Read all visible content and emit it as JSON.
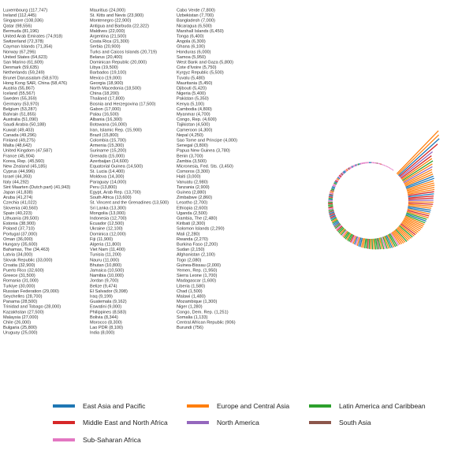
{
  "chart_data": {
    "type": "bar",
    "layout": "circular",
    "title": "",
    "sorted": "descending clockwise",
    "regions": {
      "E": {
        "name": "East Asia and Pacific",
        "color": "#1f77b4"
      },
      "U": {
        "name": "Europe and Central Asia",
        "color": "#ff7f0e"
      },
      "L": {
        "name": "Latin America and Caribbean",
        "color": "#2ca02c"
      },
      "M": {
        "name": "Middle East and North Africa",
        "color": "#d62728"
      },
      "N": {
        "name": "North America",
        "color": "#9467bd"
      },
      "S": {
        "name": "South Asia",
        "color": "#8c564b"
      },
      "A": {
        "name": "Sub-Saharan Africa",
        "color": "#e377c2"
      }
    },
    "legend_order": [
      "E",
      "U",
      "L",
      "M",
      "N",
      "S",
      "A"
    ],
    "countries": [
      [
        "Luxembourg",
        117747,
        "U"
      ],
      [
        "Ireland",
        112445,
        "U"
      ],
      [
        "Singapore",
        108036,
        "E"
      ],
      [
        "Qatar",
        98556,
        "M"
      ],
      [
        "Bermuda",
        81196,
        "N"
      ],
      [
        "United Arab Emirates",
        74918,
        "M"
      ],
      [
        "Switzerland",
        72378,
        "U"
      ],
      [
        "Cayman Islands",
        71354,
        "L"
      ],
      [
        "Norway",
        67296,
        "U"
      ],
      [
        "United States",
        64623,
        "N"
      ],
      [
        "San Marino",
        61609,
        "U"
      ],
      [
        "Denmark",
        59635,
        "U"
      ],
      [
        "Netherlands",
        59249,
        "U"
      ],
      [
        "Brunei Darussalam",
        58670,
        "E"
      ],
      [
        "Hong Kong SAR, China",
        58476,
        "E"
      ],
      [
        "Austria",
        55867,
        "U"
      ],
      [
        "Iceland",
        55567,
        "U"
      ],
      [
        "Sweden",
        55359,
        "U"
      ],
      [
        "Germany",
        53970,
        "U"
      ],
      [
        "Belgium",
        53287,
        "U"
      ],
      [
        "Bahrain",
        51855,
        "M"
      ],
      [
        "Australia",
        51090,
        "E"
      ],
      [
        "Saudi Arabia",
        50188,
        "M"
      ],
      [
        "Kuwait",
        49403,
        "M"
      ],
      [
        "Canada",
        49296,
        "N"
      ],
      [
        "Finland",
        49275,
        "U"
      ],
      [
        "Malta",
        48642,
        "M"
      ],
      [
        "United Kingdom",
        47587,
        "U"
      ],
      [
        "France",
        45904,
        "U"
      ],
      [
        "Korea, Rep.",
        45560,
        "E"
      ],
      [
        "New Zealand",
        45185,
        "E"
      ],
      [
        "Cyprus",
        44996,
        "U"
      ],
      [
        "Israel",
        44393,
        "M"
      ],
      [
        "Italy",
        44292,
        "U"
      ],
      [
        "Sint Maarten (Dutch part)",
        41943,
        "L"
      ],
      [
        "Japan",
        41838,
        "E"
      ],
      [
        "Aruba",
        41274,
        "L"
      ],
      [
        "Czechia",
        41022,
        "U"
      ],
      [
        "Slovenia",
        40560,
        "U"
      ],
      [
        "Spain",
        40223,
        "U"
      ],
      [
        "Lithuania",
        39500,
        "U"
      ],
      [
        "Estonia",
        38900,
        "U"
      ],
      [
        "Poland",
        37710,
        "U"
      ],
      [
        "Portugal",
        37000,
        "U"
      ],
      [
        "Oman",
        36000,
        "M"
      ],
      [
        "Hungary",
        35600,
        "U"
      ],
      [
        "Bahamas, The",
        34463,
        "L"
      ],
      [
        "Latvia",
        34000,
        "U"
      ],
      [
        "Slovak Republic",
        33000,
        "U"
      ],
      [
        "Croatia",
        32900,
        "U"
      ],
      [
        "Puerto Rico",
        32600,
        "L"
      ],
      [
        "Greece",
        31500,
        "U"
      ],
      [
        "Romania",
        31000,
        "U"
      ],
      [
        "Turkiye",
        30000,
        "U"
      ],
      [
        "Russian Federation",
        29000,
        "U"
      ],
      [
        "Seychelles",
        28700,
        "A"
      ],
      [
        "Panama",
        28500,
        "L"
      ],
      [
        "Trinidad and Tobago",
        28000,
        "L"
      ],
      [
        "Kazakhstan",
        27500,
        "U"
      ],
      [
        "Malaysia",
        27000,
        "E"
      ],
      [
        "Chile",
        26000,
        "L"
      ],
      [
        "Bulgaria",
        25800,
        "U"
      ],
      [
        "Uruguay",
        25000,
        "L"
      ],
      [
        "Mauritius",
        24000,
        "A"
      ],
      [
        "St. Kitts and Nevis",
        23900,
        "L"
      ],
      [
        "Montenegro",
        22900,
        "U"
      ],
      [
        "Antigua and Barbuda",
        22322,
        "L"
      ],
      [
        "Maldives",
        22000,
        "S"
      ],
      [
        "Argentina",
        21500,
        "L"
      ],
      [
        "Costa Rica",
        21300,
        "L"
      ],
      [
        "Serbia",
        20900,
        "U"
      ],
      [
        "Turks and Caicos Islands",
        20719,
        "L"
      ],
      [
        "Belarus",
        20400,
        "U"
      ],
      [
        "Dominican Republic",
        20000,
        "L"
      ],
      [
        "Libya",
        19500,
        "M"
      ],
      [
        "Barbados",
        19100,
        "L"
      ],
      [
        "Mexico",
        19000,
        "L"
      ],
      [
        "Georgia",
        18900,
        "U"
      ],
      [
        "North Macedonia",
        18500,
        "U"
      ],
      [
        "China",
        18200,
        "E"
      ],
      [
        "Thailand",
        17800,
        "E"
      ],
      [
        "Bosnia and Herzegovina",
        17500,
        "U"
      ],
      [
        "Gabon",
        17000,
        "A"
      ],
      [
        "Palau",
        16500,
        "E"
      ],
      [
        "Albania",
        16300,
        "U"
      ],
      [
        "Botswana",
        16000,
        "A"
      ],
      [
        "Iran, Islamic Rep.",
        15900,
        "M"
      ],
      [
        "Brazil",
        15800,
        "L"
      ],
      [
        "Colombia",
        15700,
        "L"
      ],
      [
        "Armenia",
        15300,
        "U"
      ],
      [
        "Suriname",
        15200,
        "L"
      ],
      [
        "Grenada",
        15000,
        "L"
      ],
      [
        "Azerbaijan",
        14600,
        "U"
      ],
      [
        "Equatorial Guinea",
        14500,
        "A"
      ],
      [
        "St. Lucia",
        14400,
        "L"
      ],
      [
        "Moldova",
        14300,
        "U"
      ],
      [
        "Paraguay",
        14000,
        "L"
      ],
      [
        "Peru",
        13800,
        "L"
      ],
      [
        "Egypt, Arab Rep.",
        13700,
        "M"
      ],
      [
        "South Africa",
        13600,
        "A"
      ],
      [
        "St. Vincent and the Grenadines",
        13500,
        "L"
      ],
      [
        "Sri Lanka",
        13300,
        "S"
      ],
      [
        "Mongolia",
        13000,
        "E"
      ],
      [
        "Indonesia",
        12700,
        "E"
      ],
      [
        "Ecuador",
        12500,
        "L"
      ],
      [
        "Ukraine",
        12100,
        "U"
      ],
      [
        "Dominica",
        12000,
        "L"
      ],
      [
        "Fiji",
        11900,
        "E"
      ],
      [
        "Algeria",
        11800,
        "M"
      ],
      [
        "Viet Nam",
        11400,
        "E"
      ],
      [
        "Tunisia",
        11200,
        "M"
      ],
      [
        "Nauru",
        11000,
        "E"
      ],
      [
        "Bhutan",
        10800,
        "S"
      ],
      [
        "Jamaica",
        10500,
        "L"
      ],
      [
        "Namibia",
        10000,
        "A"
      ],
      [
        "Jordan",
        9700,
        "M"
      ],
      [
        "Belize",
        9474,
        "L"
      ],
      [
        "El Salvador",
        9398,
        "L"
      ],
      [
        "Iraq",
        9199,
        "M"
      ],
      [
        "Guatemala",
        9162,
        "L"
      ],
      [
        "Eswatini",
        9000,
        "A"
      ],
      [
        "Philippines",
        8583,
        "E"
      ],
      [
        "Bolivia",
        8344,
        "L"
      ],
      [
        "Morocco",
        8300,
        "M"
      ],
      [
        "Lao PDR",
        8100,
        "E"
      ],
      [
        "India",
        8000,
        "S"
      ],
      [
        "Cabo Verde",
        7800,
        "A"
      ],
      [
        "Uzbekistan",
        7700,
        "U"
      ],
      [
        "Bangladesh",
        7000,
        "S"
      ],
      [
        "Nicaragua",
        6500,
        "L"
      ],
      [
        "Marshall Islands",
        6450,
        "E"
      ],
      [
        "Tonga",
        6400,
        "E"
      ],
      [
        "Angola",
        6300,
        "A"
      ],
      [
        "Ghana",
        6100,
        "A"
      ],
      [
        "Honduras",
        6000,
        "L"
      ],
      [
        "Samoa",
        5950,
        "E"
      ],
      [
        "West Bank and Gaza",
        5800,
        "M"
      ],
      [
        "Cote d'Ivoire",
        5750,
        "A"
      ],
      [
        "Kyrgyz Republic",
        5500,
        "U"
      ],
      [
        "Tuvalu",
        5480,
        "E"
      ],
      [
        "Mauritania",
        5450,
        "A"
      ],
      [
        "Djibouti",
        5420,
        "M"
      ],
      [
        "Nigeria",
        5400,
        "A"
      ],
      [
        "Pakistan",
        5350,
        "S"
      ],
      [
        "Kenya",
        5100,
        "A"
      ],
      [
        "Cambodia",
        4800,
        "E"
      ],
      [
        "Myanmar",
        4700,
        "E"
      ],
      [
        "Congo, Rep.",
        4600,
        "A"
      ],
      [
        "Tajikistan",
        4500,
        "U"
      ],
      [
        "Cameroon",
        4300,
        "A"
      ],
      [
        "Nepal",
        4250,
        "S"
      ],
      [
        "Sao Tome and Principe",
        4000,
        "A"
      ],
      [
        "Senegal",
        3800,
        "A"
      ],
      [
        "Papua New Guinea",
        3780,
        "E"
      ],
      [
        "Benin",
        3700,
        "A"
      ],
      [
        "Zambia",
        3500,
        "A"
      ],
      [
        "Micronesia, Fed. Sts.",
        3450,
        "E"
      ],
      [
        "Comoros",
        3300,
        "A"
      ],
      [
        "Haiti",
        3000,
        "L"
      ],
      [
        "Vanuatu",
        2980,
        "E"
      ],
      [
        "Tanzania",
        2900,
        "A"
      ],
      [
        "Guinea",
        2880,
        "A"
      ],
      [
        "Zimbabwe",
        2860,
        "A"
      ],
      [
        "Lesotho",
        2700,
        "A"
      ],
      [
        "Ethiopia",
        2600,
        "A"
      ],
      [
        "Uganda",
        2500,
        "A"
      ],
      [
        "Gambia, The",
        2480,
        "A"
      ],
      [
        "Kiribati",
        2300,
        "E"
      ],
      [
        "Solomon Islands",
        2290,
        "E"
      ],
      [
        "Mali",
        2280,
        "A"
      ],
      [
        "Rwanda",
        2270,
        "A"
      ],
      [
        "Burkina Faso",
        2200,
        "A"
      ],
      [
        "Sudan",
        2150,
        "A"
      ],
      [
        "Afghanistan",
        2100,
        "S"
      ],
      [
        "Togo",
        2080,
        "A"
      ],
      [
        "Guinea-Bissau",
        2000,
        "A"
      ],
      [
        "Yemen, Rep.",
        1950,
        "M"
      ],
      [
        "Sierra Leone",
        1700,
        "A"
      ],
      [
        "Madagascar",
        1600,
        "A"
      ],
      [
        "Liberia",
        1580,
        "A"
      ],
      [
        "Chad",
        1500,
        "A"
      ],
      [
        "Malawi",
        1480,
        "A"
      ],
      [
        "Mozambique",
        1300,
        "A"
      ],
      [
        "Niger",
        1280,
        "A"
      ],
      [
        "Congo, Dem. Rep.",
        1251,
        "A"
      ],
      [
        "Somalia",
        1133,
        "A"
      ],
      [
        "Central African Republic",
        906,
        "A"
      ],
      [
        "Burundi",
        756,
        "A"
      ]
    ]
  }
}
